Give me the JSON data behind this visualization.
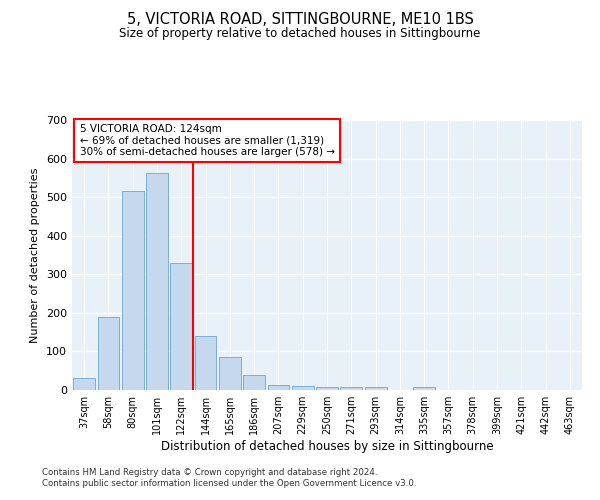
{
  "title": "5, VICTORIA ROAD, SITTINGBOURNE, ME10 1BS",
  "subtitle": "Size of property relative to detached houses in Sittingbourne",
  "xlabel": "Distribution of detached houses by size in Sittingbourne",
  "ylabel": "Number of detached properties",
  "categories": [
    "37sqm",
    "58sqm",
    "80sqm",
    "101sqm",
    "122sqm",
    "144sqm",
    "165sqm",
    "186sqm",
    "207sqm",
    "229sqm",
    "250sqm",
    "271sqm",
    "293sqm",
    "314sqm",
    "335sqm",
    "357sqm",
    "378sqm",
    "399sqm",
    "421sqm",
    "442sqm",
    "463sqm"
  ],
  "values": [
    30,
    190,
    517,
    562,
    328,
    141,
    86,
    40,
    12,
    10,
    8,
    9,
    9,
    0,
    8,
    0,
    0,
    0,
    0,
    0,
    0
  ],
  "bar_color": "#c5d8ed",
  "bar_edge_color": "#7aaed0",
  "vline_index": 4,
  "vline_color": "red",
  "annotation_text": "5 VICTORIA ROAD: 124sqm\n← 69% of detached houses are smaller (1,319)\n30% of semi-detached houses are larger (578) →",
  "annotation_box_color": "white",
  "annotation_box_edge": "red",
  "ylim": [
    0,
    700
  ],
  "yticks": [
    0,
    100,
    200,
    300,
    400,
    500,
    600,
    700
  ],
  "background_color": "#e8f0f8",
  "grid_color": "white",
  "footer": "Contains HM Land Registry data © Crown copyright and database right 2024.\nContains public sector information licensed under the Open Government Licence v3.0."
}
